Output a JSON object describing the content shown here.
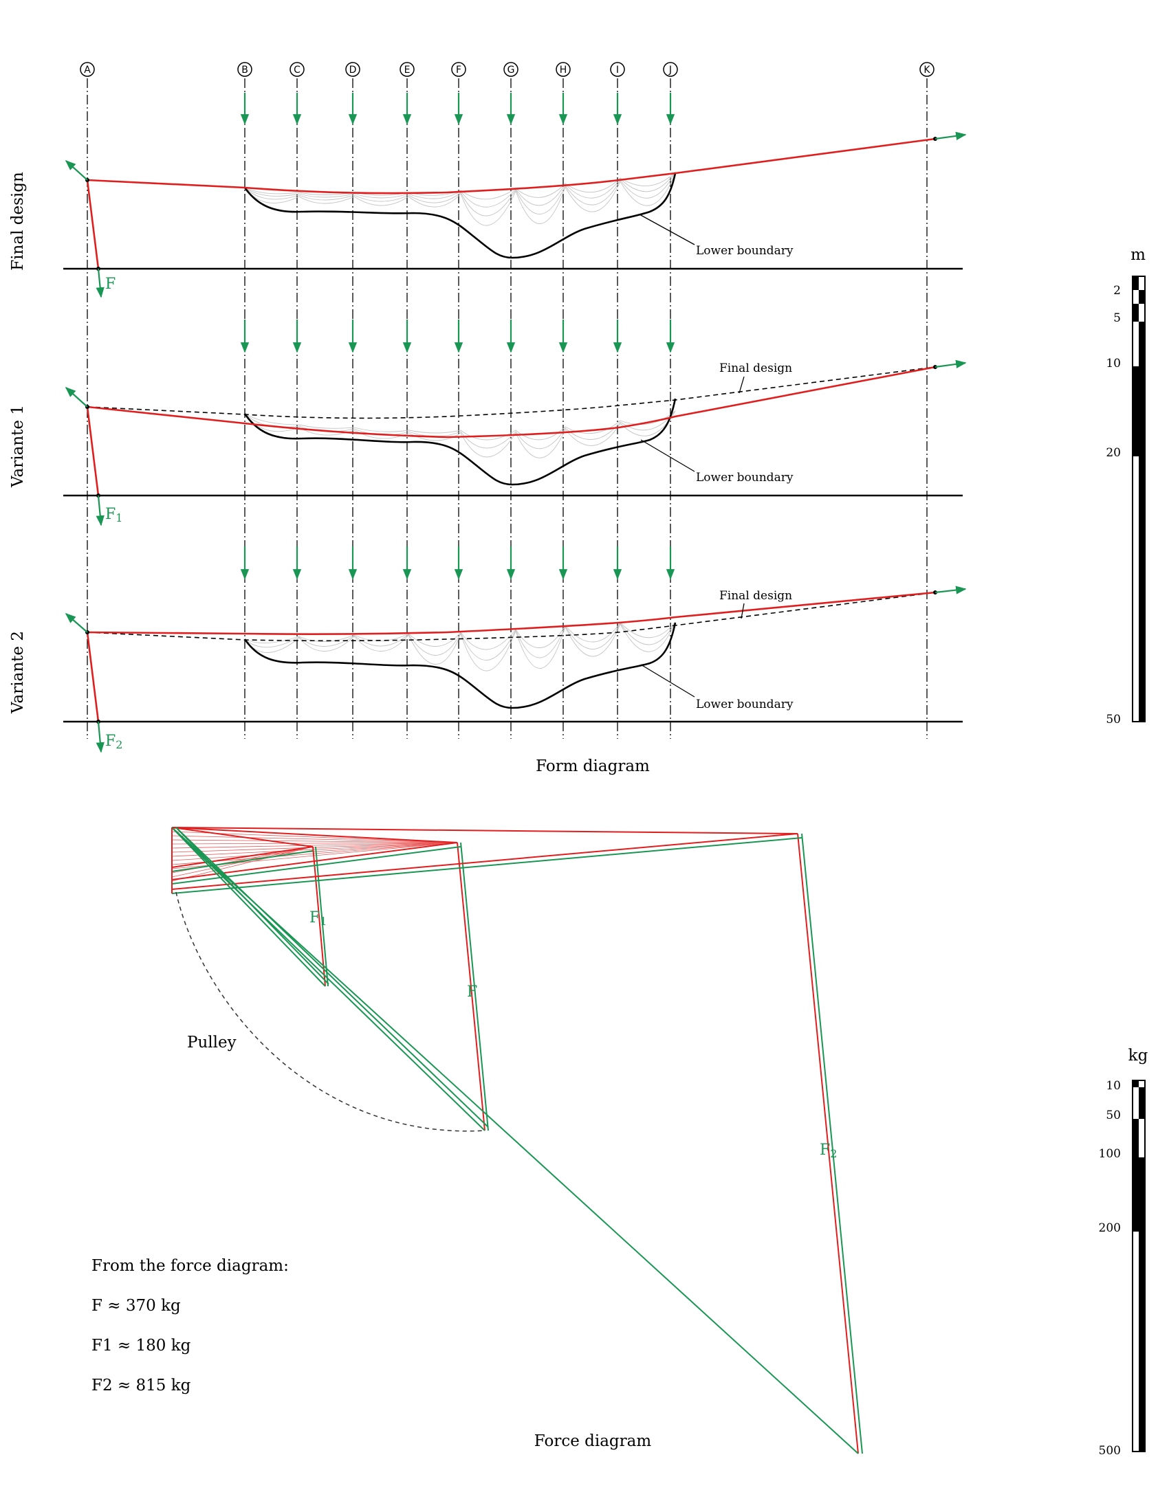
{
  "axes": [
    "A",
    "B",
    "C",
    "D",
    "E",
    "F",
    "G",
    "H",
    "I",
    "J",
    "K"
  ],
  "panels": [
    {
      "side_label": "Final design",
      "force_label": "F",
      "force_sub": "",
      "lower_label": "Lower boundary",
      "final_label": ""
    },
    {
      "side_label": "Variante 1",
      "force_label": "F",
      "force_sub": "1",
      "lower_label": "Lower boundary",
      "final_label": "Final design"
    },
    {
      "side_label": "Variante 2",
      "force_label": "F",
      "force_sub": "2",
      "lower_label": "Lower boundary",
      "final_label": "Final design"
    }
  ],
  "form_caption": "Form diagram",
  "force_caption": "Force diagram",
  "pulley_label": "Pulley",
  "force_labels": {
    "f": "F",
    "f1_main": "F",
    "f1_sub": "1",
    "f2_main": "F",
    "f2_sub": "2"
  },
  "results": {
    "heading": "From the force diagram:",
    "lines": [
      "F ≈  370 kg",
      "F1 ≈ 180 kg",
      "F2 ≈ 815 kg"
    ]
  },
  "scale_m": {
    "unit": "m",
    "ticks": [
      "2",
      "5",
      "10",
      "20",
      "50"
    ]
  },
  "scale_kg": {
    "unit": "kg",
    "ticks": [
      "10",
      "50",
      "100",
      "200",
      "500"
    ]
  },
  "colors": {
    "cable": "#e01e1e",
    "force": "#1a9654",
    "hanger": "#c4c4c4"
  }
}
